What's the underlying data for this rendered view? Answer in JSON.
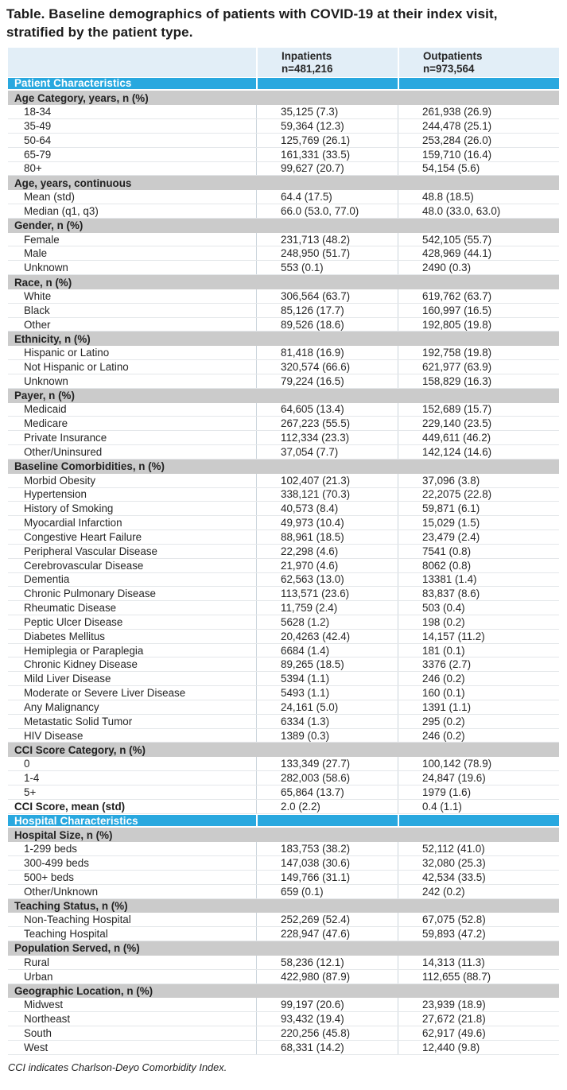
{
  "title": "Table. Baseline demographics of patients with COVID-19 at their index visit, stratified by the patient type.",
  "header": {
    "inpatients_label": "Inpatients",
    "inpatients_n": "n=481,216",
    "outpatients_label": "Outpatients",
    "outpatients_n": "n=973,564"
  },
  "footnote": "CCI indicates Charlson-Deyo Comorbidity Index.",
  "colors": {
    "accent_blue": "#29a8df",
    "section_gray": "#cbcbcb",
    "header_bg": "#e2eef7"
  },
  "rows": [
    {
      "type": "blue",
      "label": "Patient Characteristics",
      "inpatients": "",
      "outpatients": ""
    },
    {
      "type": "gray",
      "label": "Age Category, years, n (%)"
    },
    {
      "type": "data",
      "label": "18-34",
      "inpatients": "35,125 (7.3)",
      "outpatients": "261,938 (26.9)"
    },
    {
      "type": "data",
      "label": "35-49",
      "inpatients": "59,364 (12.3)",
      "outpatients": "244,478 (25.1)"
    },
    {
      "type": "data",
      "label": "50-64",
      "inpatients": "125,769 (26.1)",
      "outpatients": "253,284 (26.0)"
    },
    {
      "type": "data",
      "label": "65-79",
      "inpatients": "161,331 (33.5)",
      "outpatients": "159,710 (16.4)"
    },
    {
      "type": "data",
      "label": "80+",
      "inpatients": "99,627 (20.7)",
      "outpatients": "54,154 (5.6)"
    },
    {
      "type": "gray",
      "label": "Age, years, continuous"
    },
    {
      "type": "data",
      "label": "Mean (std)",
      "inpatients": "64.4 (17.5)",
      "outpatients": "48.8 (18.5)"
    },
    {
      "type": "data",
      "label": "Median (q1, q3)",
      "inpatients": "66.0 (53.0, 77.0)",
      "outpatients": "48.0 (33.0, 63.0)"
    },
    {
      "type": "gray",
      "label": "Gender, n (%)"
    },
    {
      "type": "data",
      "label": "Female",
      "inpatients": "231,713 (48.2)",
      "outpatients": "542,105 (55.7)"
    },
    {
      "type": "data",
      "label": "Male",
      "inpatients": "248,950 (51.7)",
      "outpatients": "428,969 (44.1)"
    },
    {
      "type": "data",
      "label": "Unknown",
      "inpatients": "553 (0.1)",
      "outpatients": "2490 (0.3)"
    },
    {
      "type": "gray",
      "label": "Race, n (%)"
    },
    {
      "type": "data",
      "label": "White",
      "inpatients": "306,564 (63.7)",
      "outpatients": "619,762 (63.7)"
    },
    {
      "type": "data",
      "label": "Black",
      "inpatients": "85,126 (17.7)",
      "outpatients": "160,997 (16.5)"
    },
    {
      "type": "data",
      "label": "Other",
      "inpatients": "89,526 (18.6)",
      "outpatients": "192,805 (19.8)"
    },
    {
      "type": "gray",
      "label": "Ethnicity, n (%)"
    },
    {
      "type": "data",
      "label": "Hispanic or Latino",
      "inpatients": "81,418 (16.9)",
      "outpatients": "192,758 (19.8)"
    },
    {
      "type": "data",
      "label": "Not Hispanic or Latino",
      "inpatients": "320,574 (66.6)",
      "outpatients": "621,977 (63.9)"
    },
    {
      "type": "data",
      "label": "Unknown",
      "inpatients": "79,224 (16.5)",
      "outpatients": "158,829 (16.3)"
    },
    {
      "type": "gray",
      "label": "Payer, n (%)"
    },
    {
      "type": "data",
      "label": "Medicaid",
      "inpatients": "64,605 (13.4)",
      "outpatients": "152,689 (15.7)"
    },
    {
      "type": "data",
      "label": "Medicare",
      "inpatients": "267,223 (55.5)",
      "outpatients": "229,140 (23.5)"
    },
    {
      "type": "data",
      "label": "Private Insurance",
      "inpatients": "112,334 (23.3)",
      "outpatients": "449,611 (46.2)"
    },
    {
      "type": "data",
      "label": "Other/Uninsured",
      "inpatients": "37,054 (7.7)",
      "outpatients": "142,124 (14.6)"
    },
    {
      "type": "gray",
      "label": "Baseline Comorbidities, n (%)"
    },
    {
      "type": "data",
      "label": "Morbid Obesity",
      "inpatients": "102,407 (21.3)",
      "outpatients": "37,096 (3.8)"
    },
    {
      "type": "data",
      "label": "Hypertension",
      "inpatients": "338,121 (70.3)",
      "outpatients": "22,2075 (22.8)"
    },
    {
      "type": "data",
      "label": "History of Smoking",
      "inpatients": "40,573 (8.4)",
      "outpatients": "59,871 (6.1)"
    },
    {
      "type": "data",
      "label": "Myocardial Infarction",
      "inpatients": "49,973 (10.4)",
      "outpatients": "15,029 (1.5)"
    },
    {
      "type": "data",
      "label": "Congestive Heart Failure",
      "inpatients": "88,961 (18.5)",
      "outpatients": "23,479 (2.4)"
    },
    {
      "type": "data",
      "label": "Peripheral Vascular Disease",
      "inpatients": "22,298 (4.6)",
      "outpatients": "7541 (0.8)"
    },
    {
      "type": "data",
      "label": "Cerebrovascular Disease",
      "inpatients": "21,970 (4.6)",
      "outpatients": "8062 (0.8)"
    },
    {
      "type": "data",
      "label": "Dementia",
      "inpatients": "62,563 (13.0)",
      "outpatients": "13381 (1.4)"
    },
    {
      "type": "data",
      "label": "Chronic Pulmonary Disease",
      "inpatients": "113,571 (23.6)",
      "outpatients": "83,837 (8.6)"
    },
    {
      "type": "data",
      "label": "Rheumatic Disease",
      "inpatients": "11,759 (2.4)",
      "outpatients": "503 (0.4)"
    },
    {
      "type": "data",
      "label": "Peptic Ulcer Disease",
      "inpatients": "5628 (1.2)",
      "outpatients": "198 (0.2)"
    },
    {
      "type": "data",
      "label": "Diabetes Mellitus",
      "inpatients": "20,4263 (42.4)",
      "outpatients": "14,157 (11.2)"
    },
    {
      "type": "data",
      "label": "Hemiplegia or Paraplegia",
      "inpatients": "6684 (1.4)",
      "outpatients": "181 (0.1)"
    },
    {
      "type": "data",
      "label": "Chronic Kidney Disease",
      "inpatients": "89,265 (18.5)",
      "outpatients": "3376 (2.7)"
    },
    {
      "type": "data",
      "label": "Mild Liver Disease",
      "inpatients": "5394 (1.1)",
      "outpatients": "246 (0.2)"
    },
    {
      "type": "data",
      "label": "Moderate or Severe Liver Disease",
      "inpatients": "5493 (1.1)",
      "outpatients": "160 (0.1)"
    },
    {
      "type": "data",
      "label": "Any Malignancy",
      "inpatients": "24,161 (5.0)",
      "outpatients": "1391 (1.1)"
    },
    {
      "type": "data",
      "label": "Metastatic Solid Tumor",
      "inpatients": "6334 (1.3)",
      "outpatients": "295 (0.2)"
    },
    {
      "type": "data",
      "label": "HIV Disease",
      "inpatients": "1389 (0.3)",
      "outpatients": "246 (0.2)"
    },
    {
      "type": "gray",
      "label": "CCI Score Category, n (%)"
    },
    {
      "type": "data",
      "label": "0",
      "inpatients": "133,349 (27.7)",
      "outpatients": "100,142 (78.9)"
    },
    {
      "type": "data",
      "label": "1-4",
      "inpatients": "282,003 (58.6)",
      "outpatients": "24,847 (19.6)"
    },
    {
      "type": "data",
      "label": "5+",
      "inpatients": "65,864 (13.7)",
      "outpatients": "1979 (1.6)"
    },
    {
      "type": "databold",
      "label": "CCI Score, mean (std)",
      "inpatients": "2.0 (2.2)",
      "outpatients": "0.4 (1.1)"
    },
    {
      "type": "blue",
      "label": "Hospital Characteristics",
      "inpatients": "",
      "outpatients": ""
    },
    {
      "type": "gray",
      "label": "Hospital Size, n (%)"
    },
    {
      "type": "data",
      "label": "1-299 beds",
      "inpatients": "183,753 (38.2)",
      "outpatients": "52,112 (41.0)"
    },
    {
      "type": "data",
      "label": "300-499 beds",
      "inpatients": "147,038 (30.6)",
      "outpatients": "32,080 (25.3)"
    },
    {
      "type": "data",
      "label": "500+ beds",
      "inpatients": "149,766 (31.1)",
      "outpatients": "42,534 (33.5)"
    },
    {
      "type": "data",
      "label": "Other/Unknown",
      "inpatients": "659 (0.1)",
      "outpatients": "242 (0.2)"
    },
    {
      "type": "gray",
      "label": "Teaching Status, n (%)"
    },
    {
      "type": "data",
      "label": "Non-Teaching Hospital",
      "inpatients": "252,269 (52.4)",
      "outpatients": "67,075 (52.8)"
    },
    {
      "type": "data",
      "label": "Teaching Hospital",
      "inpatients": "228,947 (47.6)",
      "outpatients": "59,893 (47.2)"
    },
    {
      "type": "gray",
      "label": "Population Served, n (%)"
    },
    {
      "type": "data",
      "label": "Rural",
      "inpatients": "58,236 (12.1)",
      "outpatients": "14,313 (11.3)"
    },
    {
      "type": "data",
      "label": "Urban",
      "inpatients": "422,980 (87.9)",
      "outpatients": "112,655 (88.7)"
    },
    {
      "type": "gray",
      "label": "Geographic Location, n (%)"
    },
    {
      "type": "data",
      "label": "Midwest",
      "inpatients": "99,197 (20.6)",
      "outpatients": "23,939 (18.9)"
    },
    {
      "type": "data",
      "label": "Northeast",
      "inpatients": "93,432 (19.4)",
      "outpatients": "27,672 (21.8)"
    },
    {
      "type": "data",
      "label": "South",
      "inpatients": "220,256 (45.8)",
      "outpatients": "62,917 (49.6)"
    },
    {
      "type": "data",
      "label": "West",
      "inpatients": "68,331 (14.2)",
      "outpatients": "12,440 (9.8)"
    }
  ]
}
